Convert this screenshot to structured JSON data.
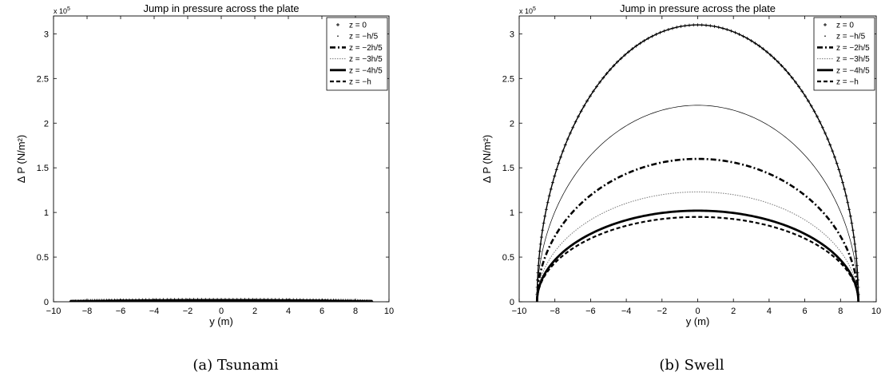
{
  "chart_data": [
    {
      "type": "line",
      "caption": "(a)  Tsunami",
      "title": "Jump in pressure across the plate",
      "xlabel": "y (m)",
      "ylabel": "Δ P (N/m²)",
      "multiplier": "x 10",
      "multiplier_exp": "5",
      "xlim": [
        -10,
        10
      ],
      "ylim": [
        0,
        320000
      ],
      "xticks": [
        "−10",
        "−8",
        "−6",
        "−4",
        "−2",
        "0",
        "2",
        "4",
        "6",
        "8",
        "10"
      ],
      "yticks": [
        "0",
        "0.5",
        "1",
        "1.5",
        "2",
        "2.5",
        "3"
      ],
      "curve_model": "semi-ellipse: ΔP(y) = peak · sqrt(1 − (y/9)^2), y from −9 to 9",
      "series": [
        {
          "name": "z = 0",
          "peak": 2500,
          "style": "plus"
        },
        {
          "name": "z = −h/5",
          "peak": 2200,
          "style": "dotted-thin"
        },
        {
          "name": "z = −2h/5",
          "peak": 1900,
          "style": "dashdot"
        },
        {
          "name": "z = −3h/5",
          "peak": 1600,
          "style": "dotted-gray"
        },
        {
          "name": "z = −4h/5",
          "peak": 1300,
          "style": "solid-thick"
        },
        {
          "name": "z = −h",
          "peak": 1100,
          "style": "dashed"
        }
      ]
    },
    {
      "type": "line",
      "caption": "(b)  Swell",
      "title": "Jump in pressure across the plate",
      "xlabel": "y (m)",
      "ylabel": "Δ P (N/m²)",
      "multiplier": "x 10",
      "multiplier_exp": "5",
      "xlim": [
        -10,
        10
      ],
      "ylim": [
        0,
        320000
      ],
      "xticks": [
        "−10",
        "−8",
        "−6",
        "−4",
        "−2",
        "0",
        "2",
        "4",
        "6",
        "8",
        "10"
      ],
      "yticks": [
        "0",
        "0.5",
        "1",
        "1.5",
        "2",
        "2.5",
        "3"
      ],
      "curve_model": "semi-ellipse: ΔP(y) = peak · sqrt(1 − (y/9)^2), y from −9 to 9",
      "series": [
        {
          "name": "z = 0",
          "peak": 310000,
          "style": "plus"
        },
        {
          "name": "z = −h/5",
          "peak": 220000,
          "style": "dotted-thin"
        },
        {
          "name": "z = −2h/5",
          "peak": 160000,
          "style": "dashdot"
        },
        {
          "name": "z = −3h/5",
          "peak": 123000,
          "style": "dotted-gray"
        },
        {
          "name": "z = −4h/5",
          "peak": 102000,
          "style": "solid-thick"
        },
        {
          "name": "z = −h",
          "peak": 95000,
          "style": "dashed"
        }
      ]
    }
  ]
}
